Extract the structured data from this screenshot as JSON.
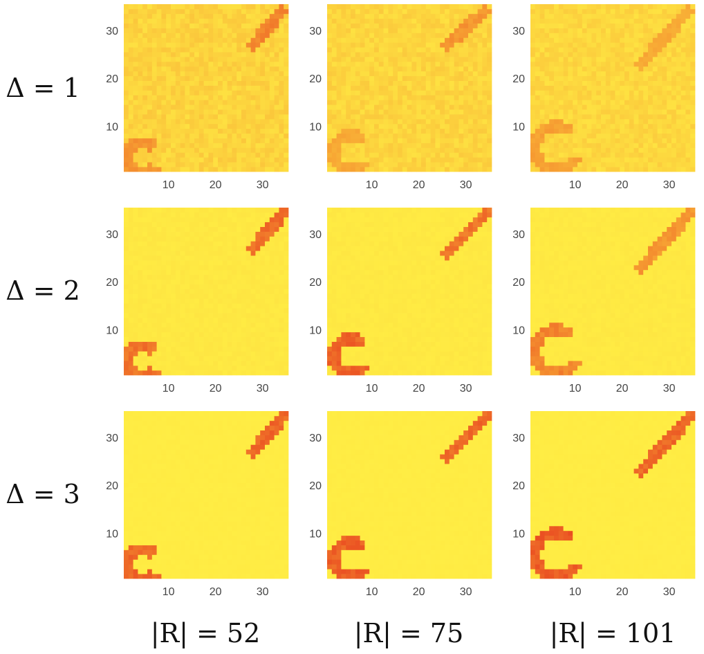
{
  "chart_data": {
    "type": "heatmap",
    "title": "",
    "grid": false,
    "legend": "none",
    "xlim": [
      0.5,
      35.5
    ],
    "ylim": [
      0.5,
      35.5
    ],
    "x_ticks": [
      "10",
      "20",
      "30"
    ],
    "y_ticks": [
      "10",
      "20",
      "30"
    ],
    "row_labels": [
      "Δ = 1",
      "Δ = 2",
      "Δ = 3"
    ],
    "col_labels": [
      "|R| = 52",
      "|R| = 75",
      "|R| = 101"
    ],
    "colorscale": [
      "#ffee44",
      "#f7a233",
      "#e8421f"
    ],
    "panels": [
      {
        "row": 0,
        "col": 0,
        "noise": 0.26,
        "arc_strength": 0.62,
        "arc_center": [
          4.5,
          3.5
        ],
        "arc_radius": 3.2,
        "streak_start": [
          28,
          27
        ],
        "streak_end": [
          34,
          34
        ],
        "streak_strength": 0.72
      },
      {
        "row": 0,
        "col": 1,
        "noise": 0.24,
        "arc_strength": 0.5,
        "arc_center": [
          5.5,
          4.5
        ],
        "arc_radius": 3.6,
        "streak_start": [
          26,
          27
        ],
        "streak_end": [
          34,
          34
        ],
        "streak_strength": 0.62
      },
      {
        "row": 0,
        "col": 2,
        "noise": 0.22,
        "arc_strength": 0.55,
        "arc_center": [
          6,
          5.5
        ],
        "arc_radius": 4.5,
        "streak_start": [
          24,
          23
        ],
        "streak_end": [
          34,
          34
        ],
        "streak_strength": 0.5
      },
      {
        "row": 1,
        "col": 0,
        "noise": 0.06,
        "arc_strength": 0.82,
        "arc_center": [
          4.5,
          3.5
        ],
        "arc_radius": 3.2,
        "streak_start": [
          28,
          27
        ],
        "streak_end": [
          35,
          35
        ],
        "streak_strength": 0.85
      },
      {
        "row": 1,
        "col": 1,
        "noise": 0.05,
        "arc_strength": 0.9,
        "arc_center": [
          5.5,
          4.5
        ],
        "arc_radius": 3.6,
        "streak_start": [
          26,
          26
        ],
        "streak_end": [
          35,
          35
        ],
        "streak_strength": 0.8
      },
      {
        "row": 1,
        "col": 2,
        "noise": 0.05,
        "arc_strength": 0.72,
        "arc_center": [
          6,
          5.5
        ],
        "arc_radius": 4.5,
        "streak_start": [
          24,
          23
        ],
        "streak_end": [
          35,
          35
        ],
        "streak_strength": 0.62
      },
      {
        "row": 2,
        "col": 0,
        "noise": 0.02,
        "arc_strength": 0.88,
        "arc_center": [
          4.5,
          3.5
        ],
        "arc_radius": 3.2,
        "streak_start": [
          28,
          27
        ],
        "streak_end": [
          35,
          35
        ],
        "streak_strength": 0.88
      },
      {
        "row": 2,
        "col": 1,
        "noise": 0.02,
        "arc_strength": 0.92,
        "arc_center": [
          5.5,
          4.5
        ],
        "arc_radius": 3.6,
        "streak_start": [
          26,
          26
        ],
        "streak_end": [
          35,
          35
        ],
        "streak_strength": 0.88
      },
      {
        "row": 2,
        "col": 2,
        "noise": 0.02,
        "arc_strength": 0.95,
        "arc_center": [
          6,
          5.5
        ],
        "arc_radius": 4.5,
        "streak_start": [
          24,
          23
        ],
        "streak_end": [
          35,
          35
        ],
        "streak_strength": 0.88
      }
    ]
  }
}
